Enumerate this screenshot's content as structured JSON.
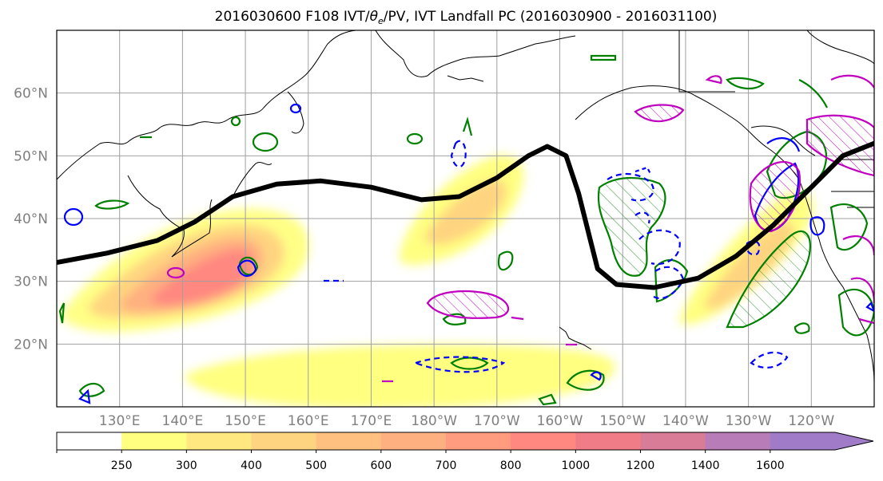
{
  "title": "2016030600 F108 IVT/θe/PV, IVT Landfall PC (2016030900 - 2016031100)",
  "title_parts": {
    "prefix": "2016030600 F108 IVT/",
    "theta": "θ",
    "sub": "e",
    "suffix": "/PV, IVT Landfall PC (2016030900 - 2016031100)"
  },
  "map": {
    "lat_labels": [
      "20°N",
      "30°N",
      "40°N",
      "50°N",
      "60°N"
    ],
    "lat_values": [
      20,
      30,
      40,
      50,
      60
    ],
    "lon_labels": [
      "130°E",
      "140°E",
      "150°E",
      "160°E",
      "170°E",
      "180°W",
      "170°W",
      "160°W",
      "150°W",
      "140°W",
      "130°W",
      "120°W"
    ],
    "lon_values": [
      130,
      140,
      150,
      160,
      170,
      180,
      190,
      200,
      210,
      220,
      230,
      240
    ],
    "extent": {
      "lon_min": 120,
      "lon_max": 250,
      "lat_min": 10,
      "lat_max": 70
    },
    "grid": true,
    "jet_track_lonlat": [
      [
        120,
        33
      ],
      [
        128,
        34.5
      ],
      [
        136,
        36.5
      ],
      [
        142,
        39.5
      ],
      [
        148,
        43.5
      ],
      [
        155,
        45.5
      ],
      [
        162,
        46
      ],
      [
        170,
        45
      ],
      [
        178,
        43
      ],
      [
        184,
        43.5
      ],
      [
        190,
        46.5
      ],
      [
        195,
        50
      ],
      [
        198,
        51.5
      ],
      [
        201,
        50
      ],
      [
        203,
        44
      ],
      [
        205,
        36
      ],
      [
        206,
        32
      ],
      [
        209,
        29.5
      ],
      [
        215,
        29
      ],
      [
        222,
        30.5
      ],
      [
        228,
        34
      ],
      [
        234,
        39
      ],
      [
        240,
        45
      ],
      [
        245,
        50
      ],
      [
        250,
        52
      ]
    ]
  },
  "colorbar": {
    "ticks": [
      "250",
      "300",
      "400",
      "500",
      "600",
      "700",
      "800",
      "1000",
      "1200",
      "1400",
      "1600"
    ],
    "colors": [
      "#ffff80",
      "#ffe880",
      "#ffd480",
      "#ffc080",
      "#ffb080",
      "#ff9c80",
      "#ff8880",
      "#f07c88",
      "#d87c98",
      "#b87cb8",
      "#a07cc8"
    ],
    "extend": "max"
  },
  "legend_colors": {
    "ivt_fill_low": "#ffff80",
    "ivt_fill_high": "#ff7a7a",
    "pv_contour": "#008000",
    "theta_contour_pos": "#0000ff",
    "pc_contour": "#c000c0",
    "jet_line": "#000000"
  }
}
